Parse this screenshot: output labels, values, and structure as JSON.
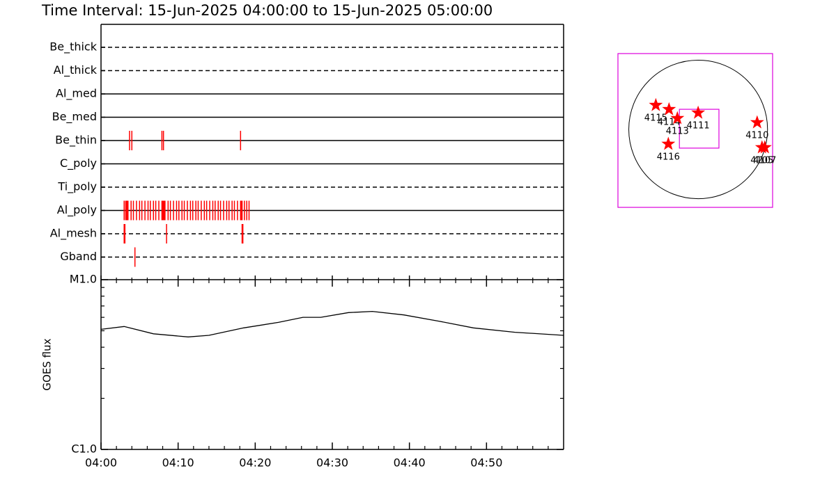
{
  "title": "Time Interval: 15-Jun-2025 04:00:00 to 15-Jun-2025 05:00:00",
  "chart_data": [
    {
      "type": "timeline",
      "categories": [
        "Be_thick",
        "Al_thick",
        "Al_med",
        "Be_med",
        "Be_thin",
        "C_poly",
        "Ti_poly",
        "Al_poly",
        "Al_mesh",
        "Gband"
      ],
      "line_styles": [
        "dashed",
        "dashed",
        "solid",
        "solid",
        "solid",
        "solid",
        "dashed",
        "solid",
        "dashed",
        "dashed"
      ],
      "events": [
        [],
        [],
        [],
        [],
        [
          3.7,
          4.0,
          7.9,
          8.1,
          18.1
        ],
        [],
        [],
        [
          3.0,
          3.2,
          3.3,
          3.4,
          3.5,
          3.9,
          4.2,
          4.6,
          5.0,
          5.3,
          5.7,
          6.1,
          6.4,
          6.8,
          7.1,
          7.5,
          7.9,
          8.0,
          8.1,
          8.2,
          8.3,
          8.7,
          9.0,
          9.4,
          9.8,
          10.1,
          10.5,
          10.8,
          11.2,
          11.6,
          11.9,
          12.3,
          12.6,
          13.0,
          13.4,
          13.7,
          14.1,
          14.5,
          14.8,
          15.2,
          15.5,
          15.9,
          16.3,
          16.6,
          17.0,
          17.3,
          17.7,
          18.1,
          18.2,
          18.3,
          18.6,
          18.9,
          19.2
        ],
        [
          3.0,
          3.1,
          8.5,
          18.3,
          18.4
        ],
        [
          4.4
        ]
      ],
      "xlim": [
        0,
        60
      ],
      "color": "#ff0000"
    },
    {
      "type": "line",
      "ylabel": "GOES flux",
      "x": [
        0,
        3.0,
        6.8,
        11.3,
        14.0,
        18.5,
        23.0,
        26.2,
        28.5,
        32.1,
        35.2,
        39.3,
        43.8,
        48.3,
        53.7,
        60
      ],
      "values": [
        5.1e-06,
        5.3e-06,
        4.8e-06,
        4.6e-06,
        4.7e-06,
        5.2e-06,
        5.6e-06,
        6e-06,
        6e-06,
        6.4e-06,
        6.5e-06,
        6.2e-06,
        5.7e-06,
        5.2e-06,
        4.9e-06,
        4.7e-06
      ],
      "xlim": [
        0,
        60
      ],
      "xticks": [
        {
          "value": 0,
          "label": "04:00"
        },
        {
          "value": 10,
          "label": "04:10"
        },
        {
          "value": 20,
          "label": "04:20"
        },
        {
          "value": 30,
          "label": "04:30"
        },
        {
          "value": 40,
          "label": "04:40"
        },
        {
          "value": 50,
          "label": "04:50"
        }
      ],
      "xminor_ticks": [
        2,
        4,
        6,
        8,
        12,
        14,
        16,
        18,
        22,
        24,
        26,
        28,
        32,
        34,
        36,
        38,
        42,
        44,
        46,
        48,
        52,
        54,
        56,
        58
      ],
      "ylim": [
        1e-06,
        1e-05
      ],
      "log_scale": true,
      "yticks": [
        {
          "value": 1e-06,
          "label": "C1.0"
        },
        {
          "value": 1e-05,
          "label": "M1.0"
        }
      ],
      "yminor_ticks": [
        2e-06,
        3e-06,
        4e-06,
        5e-06,
        6e-06,
        7e-06,
        8e-06,
        9e-06
      ],
      "color": "#000000"
    },
    {
      "type": "map",
      "xlim": [
        -1110,
        1030
      ],
      "ylim": [
        -1080,
        1051
      ],
      "solar_radius": 960,
      "fov": {
        "x": 14,
        "y": 10,
        "width": 547,
        "height": 538
      },
      "points": [
        {
          "label": "4115",
          "x": -586,
          "y": 336
        },
        {
          "label": "4114",
          "x": -403,
          "y": 278
        },
        {
          "label": "4113",
          "x": -288,
          "y": 154
        },
        {
          "label": "4111",
          "x": 0,
          "y": 230
        },
        {
          "label": "4110",
          "x": 816,
          "y": 96
        },
        {
          "label": "4116",
          "x": -413,
          "y": -202
        },
        {
          "label": "4105",
          "x": 883,
          "y": -250
        },
        {
          "label": "4107",
          "x": 922,
          "y": -250
        }
      ],
      "color": "#ff0000",
      "frame_color": "#dd00dd"
    }
  ]
}
